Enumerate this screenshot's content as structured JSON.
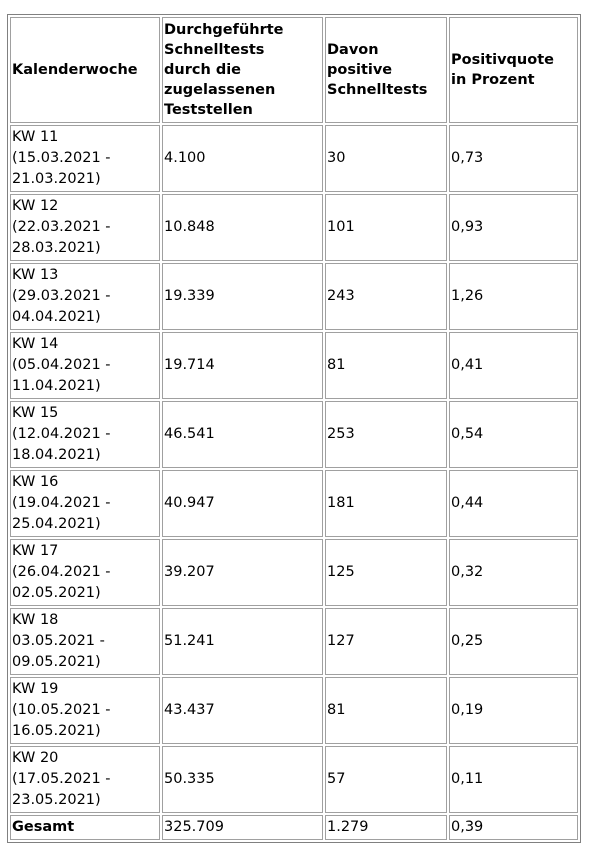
{
  "table": {
    "header": [
      "Kalenderwoche",
      "Durchgeführte\nSchnelltests\ndurch die\nzugelassenen\nTeststellen",
      "Davon\npositive\nSchnelltests",
      "Positivquote\nin Prozent"
    ],
    "rows": [
      [
        "KW 11\n(15.03.2021 -\n21.03.2021)",
        "4.100",
        "30",
        "0,73"
      ],
      [
        "KW 12\n(22.03.2021 -\n28.03.2021)",
        "10.848",
        "101",
        "0,93"
      ],
      [
        "KW 13\n(29.03.2021 -\n04.04.2021)",
        "19.339",
        "243",
        "1,26"
      ],
      [
        "KW 14\n(05.04.2021 -\n11.04.2021)",
        "19.714",
        "81",
        "0,41"
      ],
      [
        "KW 15\n(12.04.2021 -\n18.04.2021)",
        "46.541",
        "253",
        "0,54"
      ],
      [
        "KW 16\n(19.04.2021 -\n25.04.2021)",
        "40.947",
        "181",
        "0,44"
      ],
      [
        "KW 17\n(26.04.2021 -\n02.05.2021)",
        "39.207",
        "125",
        "0,32"
      ],
      [
        "KW 18\n03.05.2021 -\n09.05.2021)",
        "51.241",
        "127",
        "0,25"
      ],
      [
        "KW 19\n(10.05.2021 -\n16.05.2021)",
        "43.437",
        "81",
        "0,19"
      ],
      [
        "KW 20\n(17.05.2021 -\n23.05.2021)",
        "50.335",
        "57",
        "0,11"
      ]
    ],
    "total": [
      "Gesamt",
      "325.709",
      "1.279",
      "0,39"
    ]
  }
}
